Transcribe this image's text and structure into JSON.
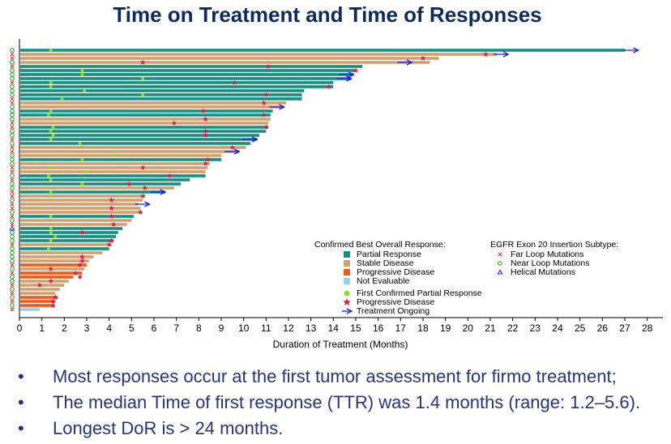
{
  "chart_data": {
    "type": "swimmer",
    "title": "Time on Treatment and Time of Responses",
    "x_label": "Duration of Treatment (Months)",
    "xlim": [
      0,
      28.7
    ],
    "xticks": [
      0,
      1,
      2,
      3,
      4,
      5,
      6,
      7,
      8,
      9,
      10,
      11,
      12,
      13,
      14,
      15,
      16,
      17,
      18,
      19,
      20,
      21,
      22,
      23,
      24,
      25,
      26,
      27,
      28
    ],
    "response_legend_title": "Confirmed Best Overall Response:",
    "responses": [
      {
        "name": "Partial Response",
        "color": "#148f80"
      },
      {
        "name": "Stable Disease",
        "color": "#d2a06e"
      },
      {
        "name": "Progressive Disease",
        "color": "#f05a14"
      },
      {
        "name": "Not Evaluable",
        "color": "#8fd3ee"
      }
    ],
    "first_response_marker": {
      "name": "First Confirmed Partial Response",
      "color": "#8ce01e"
    },
    "progression_marker": {
      "name": "Progressive Disease",
      "color": "#e8174a"
    },
    "ongoing_marker": {
      "name": "Treatment Ongoing",
      "color": "#1a1aff"
    },
    "subtype_legend_title": "EGFR Exon 20 Insertion Subtype:",
    "subtypes": [
      {
        "name": "Far Loop Mutations",
        "color": "#e02020",
        "symbol": "x"
      },
      {
        "name": "Near Loop Mutations",
        "color": "#1a9a1a",
        "symbol": "o"
      },
      {
        "name": "Helical Mutations",
        "color": "#1a1aff",
        "symbol": "triangle"
      }
    ],
    "categories": [
      null,
      null,
      null,
      null,
      null,
      null,
      null,
      null,
      null,
      null,
      null,
      null,
      null,
      null,
      null,
      null,
      null,
      null,
      null,
      null,
      null,
      null,
      null,
      null,
      null,
      null,
      null,
      null,
      null,
      null,
      null,
      null,
      null,
      null,
      null,
      null,
      null,
      null,
      null,
      null,
      null,
      null,
      null,
      null,
      null,
      null,
      null,
      null,
      null,
      null,
      null,
      null,
      null,
      null,
      null,
      null,
      null,
      null,
      null,
      null,
      null,
      null,
      null,
      null,
      null
    ],
    "durations": [
      27.0,
      21.3,
      18.7,
      18.3,
      15.3,
      15.0,
      14.9,
      14.8,
      14.0,
      14.0,
      12.7,
      12.6,
      12.6,
      11.9,
      11.8,
      11.3,
      11.2,
      11.2,
      11.1,
      11.1,
      11.0,
      10.7,
      10.6,
      10.3,
      10.1,
      9.8,
      9.0,
      9.0,
      8.5,
      8.4,
      8.3,
      8.3,
      7.6,
      7.2,
      6.9,
      6.5,
      5.6,
      5.5,
      5.3,
      5.4,
      5.4,
      5.1,
      5.0,
      4.8,
      4.6,
      4.4,
      4.3,
      4.2,
      4.1,
      4.0,
      3.7,
      3.3,
      3.1,
      3.0,
      2.9,
      2.8,
      2.4,
      2.2,
      2.0,
      1.8,
      1.6,
      1.7,
      1.6,
      1.5,
      0.9
    ],
    "row_response": [
      "Partial Response",
      "Stable Disease",
      "Stable Disease",
      "Stable Disease",
      "Partial Response",
      "Partial Response",
      "Partial Response",
      "Partial Response",
      "Partial Response",
      "Partial Response",
      "Partial Response",
      "Partial Response",
      "Partial Response",
      "Stable Disease",
      "Stable Disease",
      "Partial Response",
      "Partial Response",
      "Stable Disease",
      "Stable Disease",
      "Partial Response",
      "Partial Response",
      "Partial Response",
      "Partial Response",
      "Partial Response",
      "Stable Disease",
      "Stable Disease",
      "Stable Disease",
      "Partial Response",
      "Stable Disease",
      "Stable Disease",
      "Stable Disease",
      "Partial Response",
      "Partial Response",
      "Partial Response",
      "Stable Disease",
      "Partial Response",
      "Stable Disease",
      "Stable Disease",
      "Stable Disease",
      "Stable Disease",
      "Stable Disease",
      "Partial Response",
      "Stable Disease",
      "Stable Disease",
      "Partial Response",
      "Partial Response",
      "Partial Response",
      "Partial Response",
      "Stable Disease",
      "Partial Response",
      "Stable Disease",
      "Stable Disease",
      "Stable Disease",
      "Progressive Disease",
      "Stable Disease",
      "Progressive Disease",
      "Progressive Disease",
      "Stable Disease",
      "Stable Disease",
      "Stable Disease",
      "Stable Disease",
      "Progressive Disease",
      "Progressive Disease",
      "Progressive Disease",
      "Not Evaluable"
    ],
    "first_response": [
      1.4,
      null,
      null,
      null,
      null,
      2.8,
      2.8,
      5.5,
      1.4,
      1.4,
      2.9,
      5.5,
      1.9,
      null,
      null,
      1.4,
      1.3,
      null,
      null,
      1.5,
      1.4,
      1.5,
      1.4,
      2.7,
      null,
      null,
      4.2,
      2.8,
      null,
      1.4,
      3.0,
      1.3,
      1.4,
      2.8,
      null,
      1.4,
      1.4,
      null,
      null,
      null,
      null,
      1.4,
      null,
      null,
      1.4,
      1.4,
      1.6,
      1.4,
      null,
      1.3,
      null,
      null,
      null,
      null,
      null,
      null,
      null,
      null,
      null,
      null,
      null,
      null,
      null,
      null,
      null
    ],
    "progression": [
      null,
      20.8,
      18.0,
      5.5,
      11.1,
      15.0,
      null,
      null,
      9.6,
      13.8,
      null,
      11.0,
      null,
      10.9,
      null,
      8.2,
      10.9,
      8.3,
      6.9,
      11.0,
      8.3,
      8.3,
      null,
      null,
      9.5,
      null,
      null,
      8.4,
      8.3,
      5.5,
      null,
      6.7,
      null,
      4.9,
      5.6,
      null,
      5.5,
      4.1,
      null,
      4.1,
      5.4,
      4.1,
      null,
      4.2,
      null,
      2.8,
      null,
      4.1,
      4.0,
      null,
      null,
      2.8,
      2.8,
      2.7,
      1.4,
      2.5,
      2.7,
      1.4,
      0.9,
      null,
      null,
      1.6,
      1.5,
      1.5,
      null
    ],
    "ongoing": [
      27.6,
      21.8,
      null,
      17.5,
      null,
      null,
      14.9,
      14.8,
      null,
      null,
      null,
      null,
      null,
      null,
      11.8,
      null,
      null,
      null,
      null,
      null,
      null,
      null,
      10.6,
      null,
      null,
      9.8,
      null,
      null,
      null,
      null,
      null,
      null,
      null,
      null,
      null,
      6.5,
      null,
      null,
      5.8,
      null,
      null,
      null,
      null,
      null,
      null,
      null,
      null,
      null,
      null,
      null,
      null,
      null,
      null,
      null,
      null,
      null,
      null,
      null,
      null,
      null,
      null,
      null,
      null,
      null,
      null
    ],
    "row_subtype": [
      "Near Loop Mutations",
      "Far Loop Mutations",
      "Far Loop Mutations",
      "Near Loop Mutations",
      "Far Loop Mutations",
      "Near Loop Mutations",
      "Near Loop Mutations",
      "Near Loop Mutations",
      "Far Loop Mutations",
      "Near Loop Mutations",
      "Near Loop Mutations",
      "Near Loop Mutations",
      "Far Loop Mutations",
      "Far Loop Mutations",
      "Near Loop Mutations",
      "Near Loop Mutations",
      "Near Loop Mutations",
      "Near Loop Mutations",
      "Far Loop Mutations",
      "Far Loop Mutations",
      "Near Loop Mutations",
      "Near Loop Mutations",
      "Far Loop Mutations",
      "Near Loop Mutations",
      "Far Loop Mutations",
      "Far Loop Mutations",
      "Near Loop Mutations",
      "Near Loop Mutations",
      "Near Loop Mutations",
      "Far Loop Mutations",
      "Far Loop Mutations",
      "Near Loop Mutations",
      "Far Loop Mutations",
      "Near Loop Mutations",
      "Near Loop Mutations",
      "Far Loop Mutations",
      "Far Loop Mutations",
      "Near Loop Mutations",
      "Far Loop Mutations",
      "Far Loop Mutations",
      "Near Loop Mutations",
      "Far Loop Mutations",
      "Near Loop Mutations",
      "Far Loop Mutations",
      "Helical Mutations",
      "Near Loop Mutations",
      "Near Loop Mutations",
      "Near Loop Mutations",
      "Far Loop Mutations",
      "Near Loop Mutations",
      "Near Loop Mutations",
      "Near Loop Mutations",
      "Near Loop Mutations",
      "Far Loop Mutations",
      "Near Loop Mutations",
      "Far Loop Mutations",
      "Near Loop Mutations",
      "Near Loop Mutations",
      "Far Loop Mutations",
      "Near Loop Mutations",
      "Far Loop Mutations",
      "Near Loop Mutations",
      "Far Loop Mutations",
      "Near Loop Mutations",
      "Far Loop Mutations"
    ],
    "bullets": [
      "Most responses occur at the first tumor assessment for firmo treatment;",
      "The median Time of first response (TTR) was 1.4 months (range: 1.2–5.6).",
      "Longest DoR is > 24 months."
    ]
  }
}
